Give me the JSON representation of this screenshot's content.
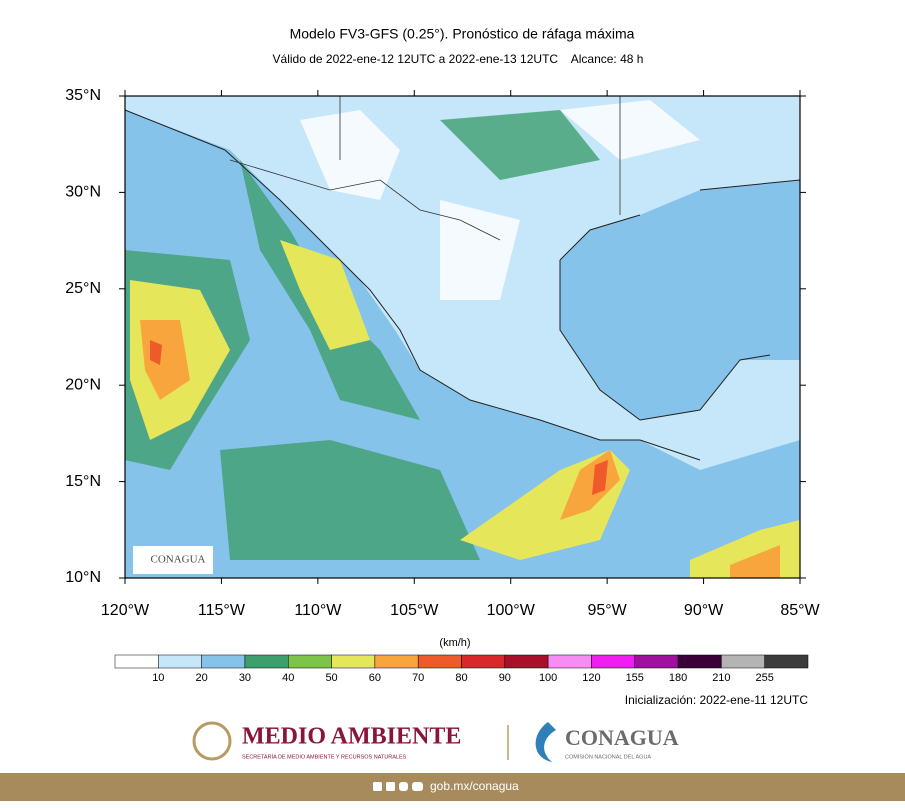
{
  "header": {
    "title": "Modelo FV3-GFS (0.25°). Pronóstico de ráfaga máxima",
    "subtitle": "Válido de 2022-ene-12 12UTC a 2022-ene-13 12UTC    Alcance: 48 h"
  },
  "map": {
    "lat_labels": [
      "35°N",
      "30°N",
      "25°N",
      "20°N",
      "15°N",
      "10°N"
    ],
    "lon_labels": [
      "120°W",
      "115°W",
      "110°W",
      "105°W",
      "100°W",
      "95°W",
      "90°W",
      "85°W"
    ],
    "logo": "CONAGUA"
  },
  "colorbar": {
    "unit": "(km/h)",
    "colors": [
      "#ffffff",
      "#c6e6fa",
      "#86c3ea",
      "#3e9f6e",
      "#7cc44a",
      "#e6e65a",
      "#f7a53c",
      "#ee5a2a",
      "#d8282c",
      "#a8102a",
      "#f78cf2",
      "#f01ef0",
      "#a0109e",
      "#3c0038",
      "#b4b4b4",
      "#3c3c3c"
    ],
    "labels": [
      "10",
      "20",
      "30",
      "40",
      "50",
      "60",
      "70",
      "80",
      "90",
      "100",
      "120",
      "155",
      "180",
      "210",
      "255"
    ]
  },
  "init": "Inicialización: 2022-ene-11 12UTC",
  "footer": {
    "left_title": "MEDIO AMBIENTE",
    "left_sub": "SECRETARÍA DE MEDIO AMBIENTE Y RECURSOS NATURALES",
    "right_title": "CONAGUA",
    "right_sub": "COMISIÓN NACIONAL DEL AGUA",
    "url": "gob.mx/conagua"
  }
}
